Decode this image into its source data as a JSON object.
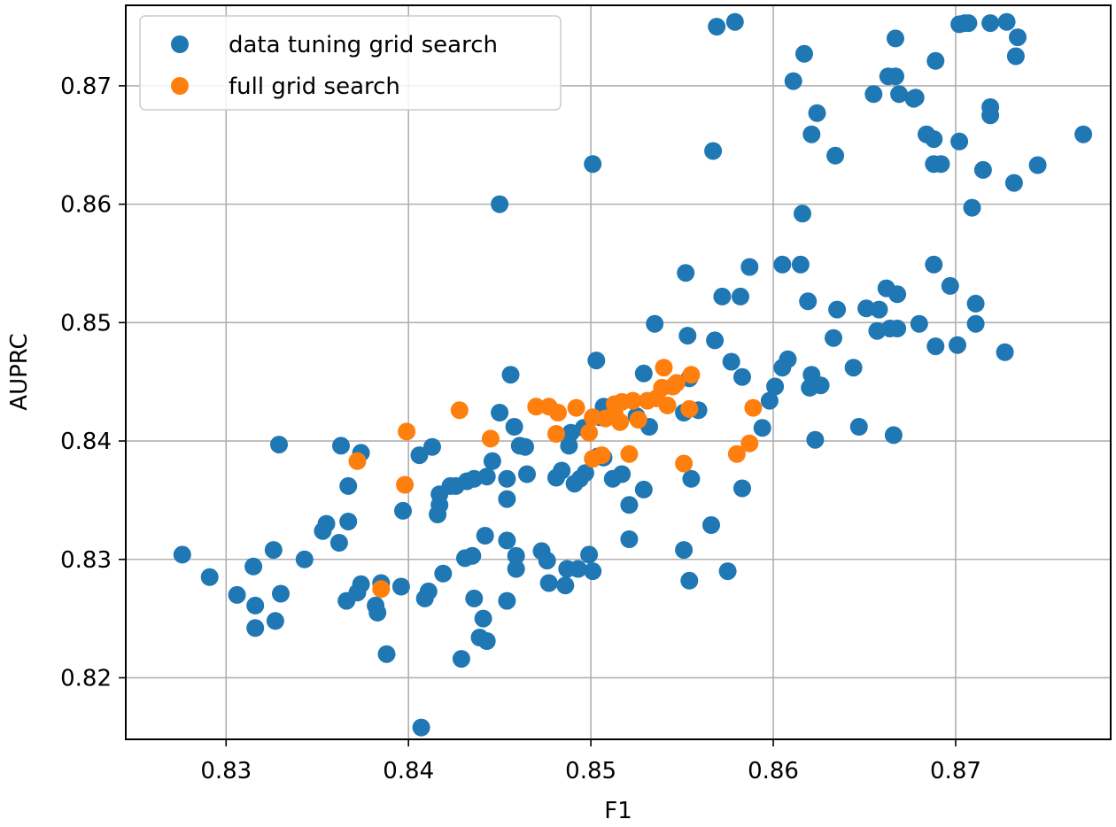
{
  "chart_data": {
    "type": "scatter",
    "title": "",
    "xlabel": "F1",
    "ylabel": "AUPRC",
    "xlim": [
      0.8245,
      0.8785
    ],
    "ylim": [
      0.8148,
      0.8768
    ],
    "xticks": [
      0.83,
      0.84,
      0.85,
      0.86,
      0.87
    ],
    "xtick_labels": [
      "0.83",
      "0.84",
      "0.85",
      "0.86",
      "0.87"
    ],
    "yticks": [
      0.82,
      0.83,
      0.84,
      0.85,
      0.86,
      0.87
    ],
    "ytick_labels": [
      "0.82",
      "0.83",
      "0.84",
      "0.85",
      "0.86",
      "0.87"
    ],
    "grid": true,
    "legend": "upper-left",
    "series": [
      {
        "name": "data tuning grid search",
        "color": "#1f77b4",
        "points": [
          [
            0.8276,
            0.8304
          ],
          [
            0.8291,
            0.8285
          ],
          [
            0.8306,
            0.827
          ],
          [
            0.8315,
            0.8294
          ],
          [
            0.8316,
            0.8261
          ],
          [
            0.8316,
            0.8242
          ],
          [
            0.8326,
            0.8308
          ],
          [
            0.8327,
            0.8248
          ],
          [
            0.833,
            0.8271
          ],
          [
            0.8329,
            0.8397
          ],
          [
            0.8343,
            0.83
          ],
          [
            0.8353,
            0.8324
          ],
          [
            0.8355,
            0.833
          ],
          [
            0.8362,
            0.8314
          ],
          [
            0.8363,
            0.8396
          ],
          [
            0.8366,
            0.8265
          ],
          [
            0.8367,
            0.8332
          ],
          [
            0.8367,
            0.8362
          ],
          [
            0.8372,
            0.8272
          ],
          [
            0.8374,
            0.8279
          ],
          [
            0.8374,
            0.839
          ],
          [
            0.8382,
            0.8261
          ],
          [
            0.8383,
            0.8255
          ],
          [
            0.8385,
            0.828
          ],
          [
            0.8388,
            0.822
          ],
          [
            0.8396,
            0.8277
          ],
          [
            0.8397,
            0.8341
          ],
          [
            0.8406,
            0.8388
          ],
          [
            0.8407,
            0.8158
          ],
          [
            0.8409,
            0.8267
          ],
          [
            0.8411,
            0.8273
          ],
          [
            0.8413,
            0.8395
          ],
          [
            0.8416,
            0.8338
          ],
          [
            0.8417,
            0.8346
          ],
          [
            0.8417,
            0.8355
          ],
          [
            0.8419,
            0.8288
          ],
          [
            0.8423,
            0.8362
          ],
          [
            0.8426,
            0.8362
          ],
          [
            0.8429,
            0.8216
          ],
          [
            0.8431,
            0.8301
          ],
          [
            0.8432,
            0.8366
          ],
          [
            0.8435,
            0.8303
          ],
          [
            0.8436,
            0.8368
          ],
          [
            0.8436,
            0.8267
          ],
          [
            0.8439,
            0.8234
          ],
          [
            0.8441,
            0.825
          ],
          [
            0.8442,
            0.832
          ],
          [
            0.8443,
            0.8231
          ],
          [
            0.8443,
            0.837
          ],
          [
            0.8446,
            0.8383
          ],
          [
            0.845,
            0.86
          ],
          [
            0.845,
            0.8424
          ],
          [
            0.8454,
            0.8265
          ],
          [
            0.8454,
            0.8316
          ],
          [
            0.8454,
            0.8351
          ],
          [
            0.8454,
            0.8368
          ],
          [
            0.8456,
            0.8456
          ],
          [
            0.8458,
            0.8412
          ],
          [
            0.8459,
            0.8292
          ],
          [
            0.8459,
            0.8303
          ],
          [
            0.8461,
            0.8396
          ],
          [
            0.8464,
            0.8395
          ],
          [
            0.8465,
            0.8372
          ],
          [
            0.8473,
            0.8307
          ],
          [
            0.8476,
            0.8299
          ],
          [
            0.8477,
            0.828
          ],
          [
            0.8481,
            0.8369
          ],
          [
            0.8484,
            0.8375
          ],
          [
            0.8486,
            0.8278
          ],
          [
            0.8487,
            0.8292
          ],
          [
            0.8488,
            0.8396
          ],
          [
            0.8489,
            0.8407
          ],
          [
            0.8491,
            0.8364
          ],
          [
            0.8493,
            0.8292
          ],
          [
            0.8494,
            0.8368
          ],
          [
            0.8496,
            0.8411
          ],
          [
            0.8497,
            0.8373
          ],
          [
            0.8499,
            0.8304
          ],
          [
            0.8501,
            0.8634
          ],
          [
            0.8501,
            0.829
          ],
          [
            0.8503,
            0.8468
          ],
          [
            0.8504,
            0.8387
          ],
          [
            0.8505,
            0.842
          ],
          [
            0.8507,
            0.8386
          ],
          [
            0.8507,
            0.8429
          ],
          [
            0.8512,
            0.8368
          ],
          [
            0.8513,
            0.8431
          ],
          [
            0.8517,
            0.8372
          ],
          [
            0.8521,
            0.8346
          ],
          [
            0.8521,
            0.8317
          ],
          [
            0.8525,
            0.8421
          ],
          [
            0.8529,
            0.8359
          ],
          [
            0.8529,
            0.8457
          ],
          [
            0.8532,
            0.8412
          ],
          [
            0.8535,
            0.8499
          ],
          [
            0.8551,
            0.8308
          ],
          [
            0.8551,
            0.8424
          ],
          [
            0.8552,
            0.8542
          ],
          [
            0.8553,
            0.8489
          ],
          [
            0.8554,
            0.8453
          ],
          [
            0.8554,
            0.8282
          ],
          [
            0.8555,
            0.8368
          ],
          [
            0.8559,
            0.8426
          ],
          [
            0.8566,
            0.8329
          ],
          [
            0.8567,
            0.8645
          ],
          [
            0.8568,
            0.8485
          ],
          [
            0.8569,
            0.875
          ],
          [
            0.8572,
            0.8522
          ],
          [
            0.8575,
            0.829
          ],
          [
            0.8577,
            0.8467
          ],
          [
            0.8579,
            0.8754
          ],
          [
            0.8582,
            0.8522
          ],
          [
            0.8583,
            0.8454
          ],
          [
            0.8583,
            0.836
          ],
          [
            0.8587,
            0.8547
          ],
          [
            0.8594,
            0.8411
          ],
          [
            0.8598,
            0.8434
          ],
          [
            0.8601,
            0.8446
          ],
          [
            0.8605,
            0.8462
          ],
          [
            0.8605,
            0.8549
          ],
          [
            0.8608,
            0.8469
          ],
          [
            0.8611,
            0.8704
          ],
          [
            0.8615,
            0.8549
          ],
          [
            0.8616,
            0.8592
          ],
          [
            0.8617,
            0.8727
          ],
          [
            0.8619,
            0.8518
          ],
          [
            0.862,
            0.8445
          ],
          [
            0.8621,
            0.8456
          ],
          [
            0.8621,
            0.8659
          ],
          [
            0.8623,
            0.8401
          ],
          [
            0.8624,
            0.8677
          ],
          [
            0.8626,
            0.8447
          ],
          [
            0.8633,
            0.8487
          ],
          [
            0.8634,
            0.8641
          ],
          [
            0.8635,
            0.8511
          ],
          [
            0.8644,
            0.8462
          ],
          [
            0.8647,
            0.8412
          ],
          [
            0.8651,
            0.8512
          ],
          [
            0.8655,
            0.8693
          ],
          [
            0.8657,
            0.8493
          ],
          [
            0.8658,
            0.8511
          ],
          [
            0.8662,
            0.8529
          ],
          [
            0.8663,
            0.8708
          ],
          [
            0.8664,
            0.8495
          ],
          [
            0.8666,
            0.8405
          ],
          [
            0.8667,
            0.874
          ],
          [
            0.8667,
            0.8708
          ],
          [
            0.8668,
            0.8495
          ],
          [
            0.8668,
            0.8524
          ],
          [
            0.8669,
            0.8693
          ],
          [
            0.8677,
            0.8689
          ],
          [
            0.8678,
            0.869
          ],
          [
            0.868,
            0.8499
          ],
          [
            0.8684,
            0.8659
          ],
          [
            0.8688,
            0.8655
          ],
          [
            0.8688,
            0.8634
          ],
          [
            0.8688,
            0.8549
          ],
          [
            0.8689,
            0.8721
          ],
          [
            0.8689,
            0.848
          ],
          [
            0.8692,
            0.8634
          ],
          [
            0.8697,
            0.8531
          ],
          [
            0.8701,
            0.8481
          ],
          [
            0.8702,
            0.8653
          ],
          [
            0.8702,
            0.8752
          ],
          [
            0.8705,
            0.8753
          ],
          [
            0.8707,
            0.8753
          ],
          [
            0.8709,
            0.8597
          ],
          [
            0.8711,
            0.8516
          ],
          [
            0.8711,
            0.8499
          ],
          [
            0.8715,
            0.8629
          ],
          [
            0.8719,
            0.8753
          ],
          [
            0.8719,
            0.8682
          ],
          [
            0.8719,
            0.8675
          ],
          [
            0.8727,
            0.8475
          ],
          [
            0.8728,
            0.8754
          ],
          [
            0.8732,
            0.8618
          ],
          [
            0.8733,
            0.8725
          ],
          [
            0.8734,
            0.8741
          ],
          [
            0.8745,
            0.8633
          ],
          [
            0.877,
            0.8659
          ]
        ]
      },
      {
        "name": "full grid search",
        "color": "#ff7f0e",
        "points": [
          [
            0.8372,
            0.8383
          ],
          [
            0.8385,
            0.8275
          ],
          [
            0.8398,
            0.8363
          ],
          [
            0.8399,
            0.8408
          ],
          [
            0.8428,
            0.8426
          ],
          [
            0.8445,
            0.8402
          ],
          [
            0.847,
            0.8429
          ],
          [
            0.8477,
            0.8429
          ],
          [
            0.8482,
            0.8424
          ],
          [
            0.8481,
            0.8406
          ],
          [
            0.8492,
            0.8428
          ],
          [
            0.8499,
            0.8407
          ],
          [
            0.8501,
            0.842
          ],
          [
            0.8501,
            0.8385
          ],
          [
            0.8506,
            0.8388
          ],
          [
            0.8508,
            0.8419
          ],
          [
            0.8513,
            0.8423
          ],
          [
            0.8513,
            0.8431
          ],
          [
            0.8516,
            0.8416
          ],
          [
            0.8517,
            0.8433
          ],
          [
            0.8521,
            0.8389
          ],
          [
            0.8523,
            0.8434
          ],
          [
            0.8526,
            0.8418
          ],
          [
            0.8531,
            0.8434
          ],
          [
            0.8536,
            0.8436
          ],
          [
            0.8539,
            0.8445
          ],
          [
            0.854,
            0.8462
          ],
          [
            0.8542,
            0.843
          ],
          [
            0.8545,
            0.8446
          ],
          [
            0.8547,
            0.8449
          ],
          [
            0.8551,
            0.8381
          ],
          [
            0.8554,
            0.8427
          ],
          [
            0.8555,
            0.8456
          ],
          [
            0.858,
            0.8389
          ],
          [
            0.8587,
            0.8398
          ],
          [
            0.8589,
            0.8428
          ]
        ]
      }
    ]
  }
}
